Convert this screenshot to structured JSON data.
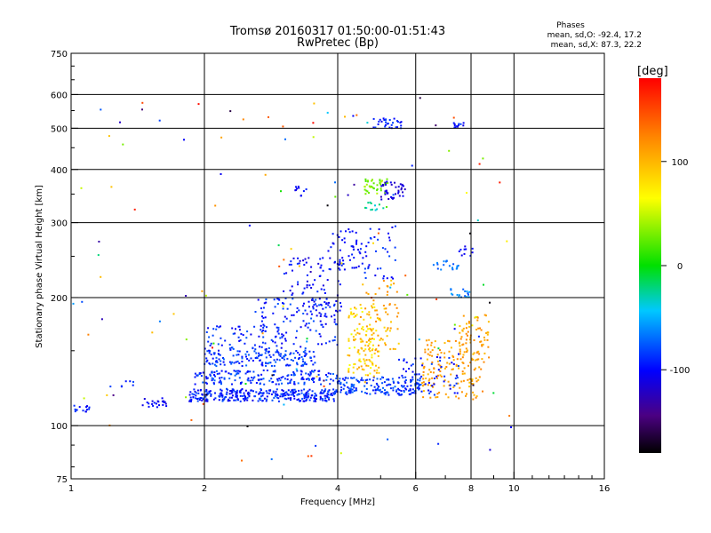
{
  "chart_data": {
    "type": "scatter",
    "title": "Tromsø 20160317 01:50:00-01:51:43",
    "subtitle": "RwPretec (Bp)",
    "xlabel": "Frequency [MHz]",
    "ylabel": "Stationary phase Virtual Height [km]",
    "x_scale": "log",
    "y_scale": "log",
    "xlim": [
      1,
      16
    ],
    "ylim": [
      75,
      750
    ],
    "x_ticks": [
      1,
      2,
      4,
      6,
      8,
      10,
      16
    ],
    "y_ticks": [
      75,
      100,
      200,
      300,
      400,
      500,
      600,
      750
    ],
    "grid": true,
    "legend": {
      "title": "Phases",
      "line1": "mean, sd,O: -92.4, 17.2",
      "line2": "mean, sd,X:  87.3, 22.2"
    },
    "colorbar": {
      "label": "[deg]",
      "range": [
        -180,
        180
      ],
      "ticks": [
        100,
        0,
        -100
      ]
    },
    "clusters": [
      {
        "f": [
          1.0,
          1.1
        ],
        "h": [
          107,
          112
        ],
        "phase": [
          -110,
          -80
        ],
        "n": 14
      },
      {
        "f": [
          1.45,
          1.65
        ],
        "h": [
          110,
          116
        ],
        "phase": [
          -115,
          -90
        ],
        "n": 22
      },
      {
        "f": [
          1.3,
          1.4
        ],
        "h": [
          122,
          128
        ],
        "phase": [
          -100,
          -80
        ],
        "n": 6
      },
      {
        "f": [
          1.85,
          4.0
        ],
        "h": [
          114,
          122
        ],
        "phase": [
          -110,
          -75
        ],
        "n": 320
      },
      {
        "f": [
          1.9,
          4.0
        ],
        "h": [
          125,
          135
        ],
        "phase": [
          -105,
          -70
        ],
        "n": 180
      },
      {
        "f": [
          2.0,
          3.6
        ],
        "h": [
          138,
          150
        ],
        "phase": [
          -100,
          -70
        ],
        "n": 150
      },
      {
        "f": [
          2.0,
          3.0
        ],
        "h": [
          150,
          172
        ],
        "phase": [
          -110,
          -75
        ],
        "n": 70
      },
      {
        "f": [
          2.6,
          4.0
        ],
        "h": [
          150,
          200
        ],
        "phase": [
          -110,
          -75
        ],
        "n": 110
      },
      {
        "f": [
          3.0,
          4.1
        ],
        "h": [
          180,
          250
        ],
        "phase": [
          -115,
          -85
        ],
        "n": 90
      },
      {
        "f": [
          3.8,
          4.5
        ],
        "h": [
          230,
          290
        ],
        "phase": [
          -110,
          -90
        ],
        "n": 40
      },
      {
        "f": [
          4.0,
          6.2
        ],
        "h": [
          118,
          130
        ],
        "phase": [
          -100,
          -70
        ],
        "n": 160
      },
      {
        "f": [
          4.2,
          5.0
        ],
        "h": [
          130,
          190
        ],
        "phase": [
          60,
          115
        ],
        "n": 120
      },
      {
        "f": [
          4.5,
          5.5
        ],
        "h": [
          150,
          220
        ],
        "phase": [
          85,
          125
        ],
        "n": 70
      },
      {
        "f": [
          4.4,
          5.4
        ],
        "h": [
          220,
          300
        ],
        "phase": [
          -110,
          -80
        ],
        "n": 45
      },
      {
        "f": [
          4.6,
          5.2
        ],
        "h": [
          350,
          380
        ],
        "phase": [
          15,
          50
        ],
        "n": 40
      },
      {
        "f": [
          5.0,
          5.7
        ],
        "h": [
          340,
          375
        ],
        "phase": [
          -125,
          -100
        ],
        "n": 40
      },
      {
        "f": [
          4.6,
          5.1
        ],
        "h": [
          320,
          335
        ],
        "phase": [
          -40,
          -15
        ],
        "n": 12
      },
      {
        "f": [
          4.8,
          5.6
        ],
        "h": [
          500,
          530
        ],
        "phase": [
          -110,
          -80
        ],
        "n": 30
      },
      {
        "f": [
          6.5,
          7.5
        ],
        "h": [
          232,
          245
        ],
        "phase": [
          -80,
          -55
        ],
        "n": 20
      },
      {
        "f": [
          7.2,
          8.0
        ],
        "h": [
          200,
          210
        ],
        "phase": [
          -80,
          -50
        ],
        "n": 18
      },
      {
        "f": [
          7.5,
          8.1
        ],
        "h": [
          250,
          265
        ],
        "phase": [
          -110,
          -90
        ],
        "n": 10
      },
      {
        "f": [
          6.2,
          8.5
        ],
        "h": [
          115,
          160
        ],
        "phase": [
          95,
          125
        ],
        "n": 150
      },
      {
        "f": [
          7.5,
          8.8
        ],
        "h": [
          140,
          185
        ],
        "phase": [
          95,
          125
        ],
        "n": 60
      },
      {
        "f": [
          5.5,
          7.5
        ],
        "h": [
          118,
          145
        ],
        "phase": [
          -110,
          -80
        ],
        "n": 60
      },
      {
        "f": [
          7.3,
          8.0
        ],
        "h": [
          500,
          515
        ],
        "phase": [
          -110,
          -80
        ],
        "n": 12
      },
      {
        "f": [
          3.2,
          3.4
        ],
        "h": [
          345,
          365
        ],
        "phase": [
          -110,
          -80
        ],
        "n": 10
      },
      {
        "f": [
          1.0,
          10.0
        ],
        "h": [
          80,
          600
        ],
        "phase": [
          -180,
          180
        ],
        "n": 130
      }
    ]
  }
}
